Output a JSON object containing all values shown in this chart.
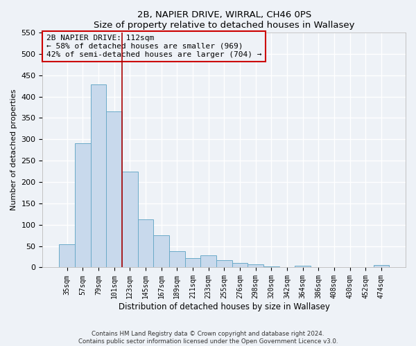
{
  "title": "2B, NAPIER DRIVE, WIRRAL, CH46 0PS",
  "subtitle": "Size of property relative to detached houses in Wallasey",
  "xlabel": "Distribution of detached houses by size in Wallasey",
  "ylabel": "Number of detached properties",
  "bar_labels": [
    "35sqm",
    "57sqm",
    "79sqm",
    "101sqm",
    "123sqm",
    "145sqm",
    "167sqm",
    "189sqm",
    "211sqm",
    "233sqm",
    "255sqm",
    "276sqm",
    "298sqm",
    "320sqm",
    "342sqm",
    "364sqm",
    "386sqm",
    "408sqm",
    "430sqm",
    "452sqm",
    "474sqm"
  ],
  "bar_values": [
    55,
    290,
    428,
    365,
    225,
    113,
    76,
    38,
    22,
    29,
    17,
    10,
    8,
    3,
    0,
    4,
    0,
    0,
    0,
    0,
    5
  ],
  "bar_color": "#c8d9ec",
  "bar_edge_color": "#6aaac8",
  "vline_color": "#aa0000",
  "ylim": [
    0,
    550
  ],
  "yticks": [
    0,
    50,
    100,
    150,
    200,
    250,
    300,
    350,
    400,
    450,
    500,
    550
  ],
  "annotation_title": "2B NAPIER DRIVE: 112sqm",
  "annotation_line1": "← 58% of detached houses are smaller (969)",
  "annotation_line2": "42% of semi-detached houses are larger (704) →",
  "footer_line1": "Contains HM Land Registry data © Crown copyright and database right 2024.",
  "footer_line2": "Contains public sector information licensed under the Open Government Licence v3.0.",
  "bg_color": "#eef2f7",
  "grid_color": "#ffffff",
  "box_color": "#cc0000",
  "vline_pos": 3.5
}
